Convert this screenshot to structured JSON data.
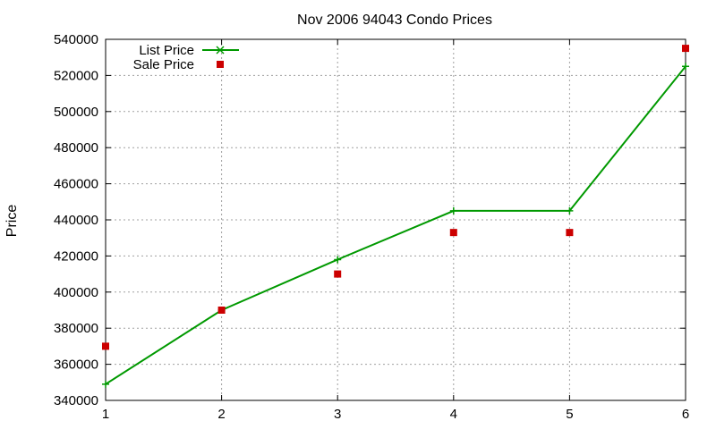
{
  "chart_data": {
    "type": "line",
    "title": "Nov 2006 94043 Condo Prices",
    "xlabel": "",
    "ylabel": "Price",
    "xlim": [
      1,
      6
    ],
    "ylim": [
      340000,
      540000
    ],
    "x_ticks": [
      1,
      2,
      3,
      4,
      5,
      6
    ],
    "y_ticks": [
      340000,
      360000,
      380000,
      400000,
      420000,
      440000,
      460000,
      480000,
      500000,
      520000,
      540000
    ],
    "grid": true,
    "legend_position": "top-left",
    "series": [
      {
        "name": "List Price",
        "style": "line+cross",
        "color": "#009900",
        "x": [
          1,
          2,
          3,
          4,
          5,
          6
        ],
        "y": [
          349000,
          390000,
          418000,
          445000,
          445000,
          525000
        ]
      },
      {
        "name": "Sale Price",
        "style": "square",
        "color": "#cc0000",
        "x": [
          1,
          2,
          3,
          4,
          5,
          6
        ],
        "y": [
          370000,
          390000,
          410000,
          433000,
          433000,
          535000
        ]
      }
    ]
  }
}
